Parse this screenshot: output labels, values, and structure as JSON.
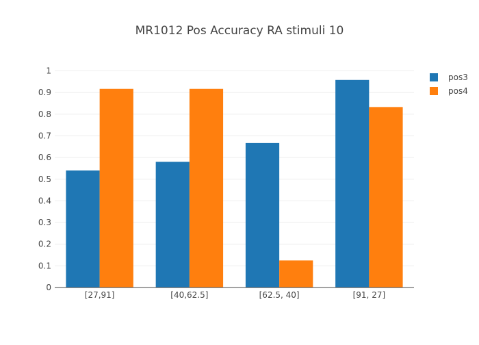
{
  "chart_data": {
    "type": "bar",
    "title": "MR1012 Pos Accuracy RA stimuli 10",
    "xlabel": "",
    "ylabel": "",
    "categories": [
      "[27,91]",
      "[40,62.5]",
      "[62.5, 40]",
      "[91, 27]"
    ],
    "series": [
      {
        "name": "pos3",
        "color": "#1f77b4",
        "values": [
          0.54,
          0.58,
          0.667,
          0.958
        ]
      },
      {
        "name": "pos4",
        "color": "#ff7f0e",
        "values": [
          0.917,
          0.917,
          0.125,
          0.833
        ]
      }
    ],
    "ylim": [
      0,
      1
    ],
    "yticks": [
      "0",
      "0.1",
      "0.2",
      "0.3",
      "0.4",
      "0.5",
      "0.6",
      "0.7",
      "0.8",
      "0.9",
      "1"
    ],
    "grid": true,
    "legend_position": "top-right"
  }
}
